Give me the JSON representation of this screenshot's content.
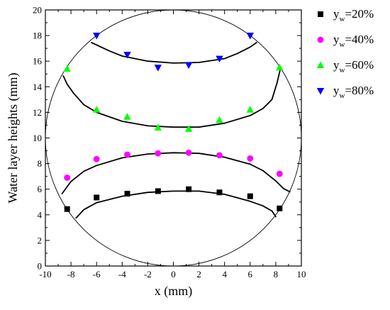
{
  "chart_data": {
    "type": "scatter",
    "xlabel": "x (mm)",
    "ylabel": "Water layer heights (mm)",
    "xlim": [
      -10,
      10
    ],
    "ylim": [
      0,
      20
    ],
    "xticks": [
      -10,
      -8,
      -6,
      -4,
      -2,
      0,
      2,
      4,
      6,
      8,
      10
    ],
    "yticks": [
      0,
      2,
      4,
      6,
      8,
      10,
      12,
      14,
      16,
      18,
      20
    ],
    "grid": false,
    "legend_position": "top-right",
    "circle": {
      "center": [
        0,
        10
      ],
      "radius": 10
    },
    "series": [
      {
        "legend_main": "y",
        "legend_sub": "w",
        "legend_value": "=20%",
        "marker": "square",
        "color": "#000000",
        "points": [
          [
            -8.3,
            4.45
          ],
          [
            -6.0,
            5.35
          ],
          [
            -3.6,
            5.65
          ],
          [
            -1.2,
            5.85
          ],
          [
            1.2,
            6.0
          ],
          [
            3.6,
            5.75
          ],
          [
            6.0,
            5.45
          ],
          [
            8.3,
            4.5
          ]
        ],
        "curve": [
          [
            -7.6,
            3.75
          ],
          [
            -7.0,
            4.4
          ],
          [
            -6.0,
            4.95
          ],
          [
            -4.0,
            5.45
          ],
          [
            -2.0,
            5.75
          ],
          [
            0.0,
            5.85
          ],
          [
            2.0,
            5.85
          ],
          [
            4.0,
            5.6
          ],
          [
            6.0,
            5.05
          ],
          [
            7.0,
            4.7
          ],
          [
            7.7,
            4.3
          ],
          [
            8.0,
            3.85
          ]
        ]
      },
      {
        "legend_main": "y",
        "legend_sub": "w",
        "legend_value": "=40%",
        "marker": "circle",
        "color": "#ff00ff",
        "points": [
          [
            -8.3,
            6.9
          ],
          [
            -6.0,
            8.35
          ],
          [
            -3.6,
            8.7
          ],
          [
            -1.2,
            8.8
          ],
          [
            1.2,
            8.85
          ],
          [
            3.6,
            8.65
          ],
          [
            6.0,
            8.4
          ],
          [
            8.3,
            7.2
          ]
        ],
        "curve": [
          [
            -8.7,
            5.65
          ],
          [
            -8.0,
            6.6
          ],
          [
            -7.0,
            7.4
          ],
          [
            -6.0,
            7.85
          ],
          [
            -4.0,
            8.45
          ],
          [
            -2.0,
            8.75
          ],
          [
            0.0,
            8.85
          ],
          [
            2.0,
            8.8
          ],
          [
            4.0,
            8.5
          ],
          [
            6.0,
            7.95
          ],
          [
            7.0,
            7.45
          ],
          [
            8.0,
            6.65
          ],
          [
            8.6,
            6.05
          ],
          [
            9.1,
            5.8
          ]
        ]
      },
      {
        "legend_main": "y",
        "legend_sub": "w",
        "legend_value": "=60%",
        "marker": "triangle-up",
        "color": "#00ff00",
        "points": [
          [
            -8.3,
            15.4
          ],
          [
            -6.0,
            12.2
          ],
          [
            -3.6,
            11.65
          ],
          [
            -1.2,
            10.8
          ],
          [
            1.2,
            10.7
          ],
          [
            3.6,
            11.4
          ],
          [
            6.0,
            12.2
          ],
          [
            8.3,
            15.5
          ]
        ],
        "curve": [
          [
            -8.6,
            14.85
          ],
          [
            -8.3,
            14.2
          ],
          [
            -7.8,
            13.5
          ],
          [
            -7.0,
            12.6
          ],
          [
            -6.0,
            12.0
          ],
          [
            -4.0,
            11.3
          ],
          [
            -2.0,
            10.95
          ],
          [
            0.0,
            10.85
          ],
          [
            2.0,
            10.85
          ],
          [
            4.0,
            11.15
          ],
          [
            6.0,
            11.75
          ],
          [
            7.0,
            12.3
          ],
          [
            7.7,
            13.0
          ],
          [
            8.1,
            14.3
          ],
          [
            8.35,
            15.35
          ]
        ]
      },
      {
        "legend_main": "y",
        "legend_sub": "w",
        "legend_value": "=80%",
        "marker": "triangle-down",
        "color": "#0000ff",
        "points": [
          [
            -6.0,
            18.0
          ],
          [
            -3.6,
            16.5
          ],
          [
            -1.2,
            15.5
          ],
          [
            1.2,
            15.7
          ],
          [
            3.6,
            16.2
          ],
          [
            6.0,
            18.0
          ]
        ],
        "curve": [
          [
            -6.4,
            17.45
          ],
          [
            -5.0,
            16.8
          ],
          [
            -4.0,
            16.4
          ],
          [
            -2.0,
            16.0
          ],
          [
            0.0,
            15.85
          ],
          [
            2.0,
            15.9
          ],
          [
            4.0,
            16.2
          ],
          [
            5.0,
            16.6
          ],
          [
            6.0,
            17.1
          ],
          [
            6.5,
            17.45
          ]
        ]
      }
    ]
  }
}
